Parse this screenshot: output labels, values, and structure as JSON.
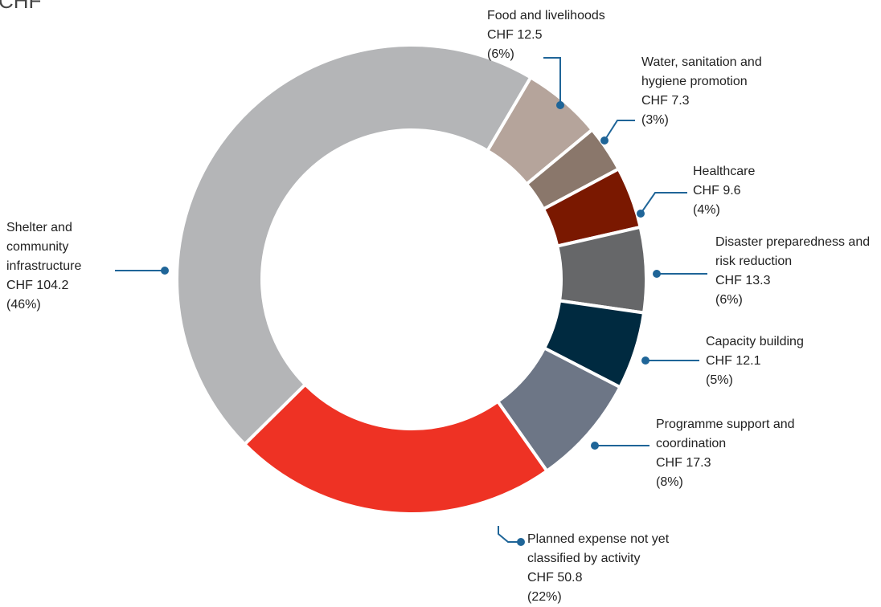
{
  "chart_data": {
    "type": "donut",
    "title": "CHF",
    "categories": [
      "Food and livelihoods",
      "Water, sanitation and hygiene promotion",
      "Healthcare",
      "Disaster preparedness and risk reduction",
      "Capacity building",
      "Programme support and coordination",
      "Planned expense not yet classified by activity",
      "Shelter and community infrastructure"
    ],
    "values": [
      12.5,
      7.3,
      9.6,
      13.3,
      12.1,
      17.3,
      50.8,
      104.2
    ],
    "value_labels": [
      "CHF 12.5",
      "CHF 7.3",
      "CHF 9.6",
      "CHF 13.3",
      "CHF 12.1",
      "CHF 17.3",
      "CHF 50.8",
      "CHF 104.2"
    ],
    "shares": [
      6,
      3,
      4,
      6,
      5,
      8,
      22,
      46
    ],
    "share_labels": [
      "(6%)",
      "(3%)",
      "(4%)",
      "(6%)",
      "(5%)",
      "(8%)",
      "(22%)",
      "(46%)"
    ],
    "colors": [
      "#b5a49b",
      "#8a776b",
      "#7a1800",
      "#666769",
      "#002a40",
      "#6d7686",
      "#ee3224",
      "#b4b5b7"
    ]
  }
}
